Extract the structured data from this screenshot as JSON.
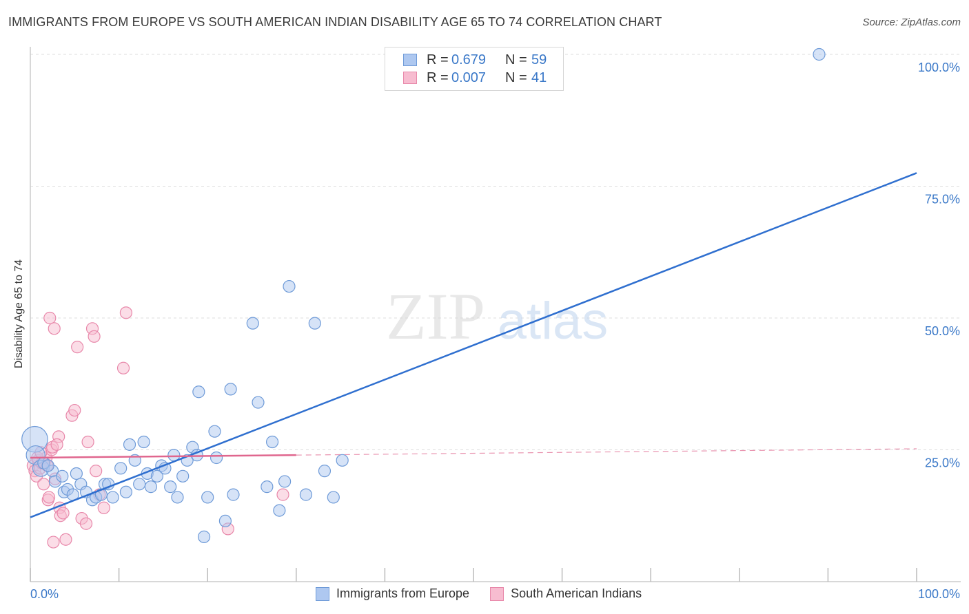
{
  "title": "IMMIGRANTS FROM EUROPE VS SOUTH AMERICAN INDIAN DISABILITY AGE 65 TO 74 CORRELATION CHART",
  "source": "Source: ZipAtlas.com",
  "watermark": {
    "zip": "ZIP",
    "atlas": "atlas"
  },
  "legend": {
    "r_label": "R =",
    "n_label": "N =",
    "series1": {
      "r": "0.679",
      "n": "59"
    },
    "series2": {
      "r": "0.007",
      "n": "41"
    }
  },
  "bottom_legend": {
    "series1": "Immigrants from Europe",
    "series2": "South American Indians"
  },
  "colors": {
    "blue_fill": "#aec8f0",
    "blue_stroke": "#6f9bd8",
    "blue_line": "#2f6fcf",
    "pink_fill": "#f7bcd0",
    "pink_stroke": "#e888aa",
    "pink_line": "#e0668e",
    "tick_text": "#3a78c8",
    "grid": "#dddddd"
  },
  "chart_data": {
    "type": "scatter",
    "title": "IMMIGRANTS FROM EUROPE VS SOUTH AMERICAN INDIAN DISABILITY AGE 65 TO 74 CORRELATION CHART",
    "xlabel": "",
    "ylabel": "Disability Age 65 to 74",
    "xlim": [
      0,
      100
    ],
    "ylim": [
      0,
      100
    ],
    "x_tick_labels": [
      "0.0%",
      "100.0%"
    ],
    "y_ticks": [
      25,
      50,
      75,
      100
    ],
    "y_tick_labels": [
      "25.0%",
      "50.0%",
      "75.0%",
      "100.0%"
    ],
    "series": [
      {
        "name": "Immigrants from Europe",
        "r": 0.679,
        "n": 59,
        "trend": {
          "x0": 0,
          "y0": 12.2,
          "x1": 100,
          "y1": 77.5
        },
        "points": [
          {
            "x": 0.5,
            "y": 27.0,
            "s": 2.2
          },
          {
            "x": 0.6,
            "y": 24.0,
            "s": 1.6
          },
          {
            "x": 1.2,
            "y": 21.5,
            "s": 1.4
          },
          {
            "x": 1.5,
            "y": 22.5
          },
          {
            "x": 2.5,
            "y": 21.0
          },
          {
            "x": 2.8,
            "y": 19.0
          },
          {
            "x": 3.6,
            "y": 20.0
          },
          {
            "x": 3.8,
            "y": 17.0
          },
          {
            "x": 4.2,
            "y": 17.5
          },
          {
            "x": 4.8,
            "y": 16.5
          },
          {
            "x": 5.2,
            "y": 20.5
          },
          {
            "x": 5.7,
            "y": 18.5
          },
          {
            "x": 6.3,
            "y": 17.0
          },
          {
            "x": 7.0,
            "y": 15.5
          },
          {
            "x": 7.4,
            "y": 16.0
          },
          {
            "x": 8.0,
            "y": 16.5
          },
          {
            "x": 8.4,
            "y": 18.5
          },
          {
            "x": 8.8,
            "y": 18.5
          },
          {
            "x": 9.3,
            "y": 16.0
          },
          {
            "x": 10.2,
            "y": 21.5
          },
          {
            "x": 10.8,
            "y": 17.0
          },
          {
            "x": 11.2,
            "y": 26.0
          },
          {
            "x": 11.8,
            "y": 23.0
          },
          {
            "x": 12.3,
            "y": 18.5
          },
          {
            "x": 12.8,
            "y": 26.5
          },
          {
            "x": 13.2,
            "y": 20.5
          },
          {
            "x": 13.6,
            "y": 18.0
          },
          {
            "x": 14.3,
            "y": 20.0
          },
          {
            "x": 14.8,
            "y": 22.0
          },
          {
            "x": 15.2,
            "y": 21.5
          },
          {
            "x": 15.8,
            "y": 18.0
          },
          {
            "x": 16.2,
            "y": 24.0
          },
          {
            "x": 16.6,
            "y": 16.0
          },
          {
            "x": 17.2,
            "y": 20.0
          },
          {
            "x": 17.7,
            "y": 23.0
          },
          {
            "x": 18.3,
            "y": 25.5
          },
          {
            "x": 18.8,
            "y": 24.0
          },
          {
            "x": 19.0,
            "y": 36.0
          },
          {
            "x": 19.6,
            "y": 8.5
          },
          {
            "x": 20.0,
            "y": 16.0
          },
          {
            "x": 20.8,
            "y": 28.5
          },
          {
            "x": 21.0,
            "y": 23.5
          },
          {
            "x": 22.0,
            "y": 11.5
          },
          {
            "x": 22.6,
            "y": 36.5
          },
          {
            "x": 22.9,
            "y": 16.5
          },
          {
            "x": 25.1,
            "y": 49.0
          },
          {
            "x": 25.7,
            "y": 34.0
          },
          {
            "x": 26.7,
            "y": 18.0
          },
          {
            "x": 27.3,
            "y": 26.5
          },
          {
            "x": 28.1,
            "y": 13.5
          },
          {
            "x": 28.7,
            "y": 19.0
          },
          {
            "x": 29.2,
            "y": 56.0
          },
          {
            "x": 31.1,
            "y": 16.5
          },
          {
            "x": 32.1,
            "y": 49.0
          },
          {
            "x": 33.2,
            "y": 21.0
          },
          {
            "x": 34.2,
            "y": 16.0
          },
          {
            "x": 35.2,
            "y": 23.0
          },
          {
            "x": 89.0,
            "y": 100.0
          },
          {
            "x": 2.0,
            "y": 22.0
          }
        ]
      },
      {
        "name": "South American Indians",
        "r": 0.007,
        "n": 41,
        "trend": {
          "x0": 0,
          "y0": 23.5,
          "x1": 30,
          "y1": 24.0,
          "dash_x1": 100,
          "y_dash_end": 25.2
        },
        "points": [
          {
            "x": 0.3,
            "y": 22.0
          },
          {
            "x": 0.5,
            "y": 21.0
          },
          {
            "x": 0.7,
            "y": 20.0
          },
          {
            "x": 0.9,
            "y": 23.0
          },
          {
            "x": 1.1,
            "y": 21.5
          },
          {
            "x": 1.3,
            "y": 22.5
          },
          {
            "x": 1.5,
            "y": 18.5
          },
          {
            "x": 1.6,
            "y": 22.5
          },
          {
            "x": 1.8,
            "y": 23.5
          },
          {
            "x": 2.0,
            "y": 15.5
          },
          {
            "x": 2.1,
            "y": 16.0
          },
          {
            "x": 2.2,
            "y": 50.0
          },
          {
            "x": 2.4,
            "y": 25.0
          },
          {
            "x": 2.5,
            "y": 25.5
          },
          {
            "x": 2.6,
            "y": 7.5
          },
          {
            "x": 2.7,
            "y": 48.0
          },
          {
            "x": 2.8,
            "y": 19.5
          },
          {
            "x": 3.2,
            "y": 27.5
          },
          {
            "x": 3.3,
            "y": 14.0
          },
          {
            "x": 3.4,
            "y": 12.5
          },
          {
            "x": 3.7,
            "y": 13.0
          },
          {
            "x": 4.0,
            "y": 8.0
          },
          {
            "x": 4.7,
            "y": 31.5
          },
          {
            "x": 5.0,
            "y": 32.5
          },
          {
            "x": 5.3,
            "y": 44.5
          },
          {
            "x": 5.8,
            "y": 12.0
          },
          {
            "x": 6.5,
            "y": 26.5
          },
          {
            "x": 6.3,
            "y": 11.0
          },
          {
            "x": 7.0,
            "y": 48.0
          },
          {
            "x": 7.2,
            "y": 46.5
          },
          {
            "x": 7.4,
            "y": 21.0
          },
          {
            "x": 7.8,
            "y": 16.5
          },
          {
            "x": 8.3,
            "y": 14.0
          },
          {
            "x": 10.5,
            "y": 40.5
          },
          {
            "x": 10.8,
            "y": 51.0
          },
          {
            "x": 22.3,
            "y": 10.0
          },
          {
            "x": 28.5,
            "y": 16.5
          },
          {
            "x": 0.8,
            "y": 23.5
          },
          {
            "x": 1.2,
            "y": 24.5
          },
          {
            "x": 1.9,
            "y": 22.0
          },
          {
            "x": 3.0,
            "y": 26.0
          }
        ]
      }
    ]
  }
}
